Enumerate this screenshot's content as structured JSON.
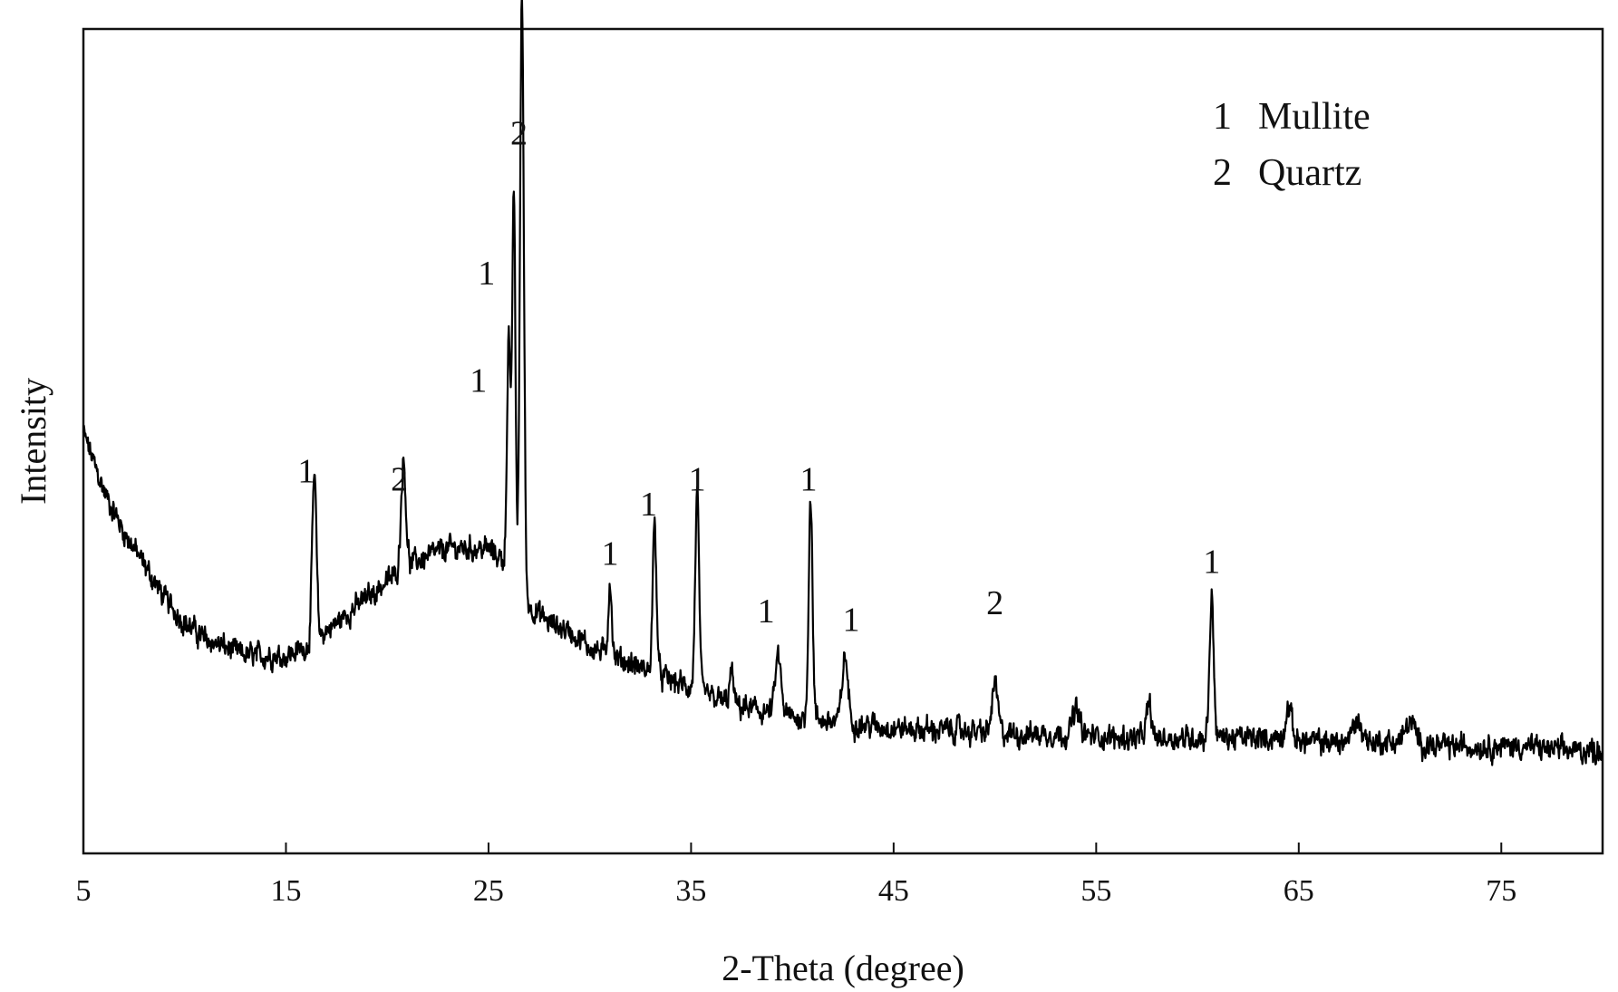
{
  "chart_data": {
    "type": "line",
    "title": "",
    "xlabel": "2-Theta (degree)",
    "ylabel": "Intensity",
    "xlim": [
      5,
      80
    ],
    "ylim": [
      0,
      100
    ],
    "x_ticks": [
      "5",
      "15",
      "25",
      "35",
      "45",
      "55",
      "65",
      "75"
    ],
    "y_ticks_visible": false,
    "grid": false,
    "legend_position": "top-right",
    "legend": [
      {
        "marker": "1",
        "phase": "Mullite"
      },
      {
        "marker": "2",
        "phase": "Quartz"
      }
    ],
    "line_color": "#000000",
    "background": {
      "x": [
        5,
        6,
        7,
        8,
        9,
        10,
        11,
        12,
        13,
        14,
        15,
        16,
        17,
        18,
        19,
        20,
        21,
        22,
        23,
        24,
        25,
        26,
        27,
        28,
        29,
        30,
        31,
        32,
        33,
        34,
        35,
        36,
        37,
        38,
        39,
        40,
        42,
        44,
        46,
        48,
        50,
        52,
        54,
        56,
        58,
        60,
        62,
        64,
        66,
        68,
        70,
        72,
        74,
        76,
        78,
        80
      ],
      "y": [
        51,
        44,
        39,
        35,
        31,
        28,
        26,
        25,
        24,
        24,
        24,
        25,
        27,
        29,
        31,
        33,
        35,
        36,
        37,
        37,
        37,
        35,
        30,
        28,
        27,
        25,
        24,
        23,
        22,
        21,
        20,
        19,
        18,
        17.5,
        17,
        16.5,
        16,
        15.5,
        15,
        15,
        14.5,
        14.5,
        14.5,
        14,
        14,
        14,
        14,
        14,
        13.5,
        13.5,
        13.5,
        13,
        13,
        13,
        12.5,
        12.5
      ]
    },
    "peaks": [
      {
        "x": 16.4,
        "height": 20,
        "width": 0.22,
        "label": "1"
      },
      {
        "x": 20.8,
        "height": 13,
        "width": 0.25,
        "label": "2"
      },
      {
        "x": 26.0,
        "height": 28,
        "width": 0.18,
        "label": "1"
      },
      {
        "x": 26.25,
        "height": 47,
        "width": 0.16,
        "label": "1"
      },
      {
        "x": 26.65,
        "height": 72,
        "width": 0.2,
        "label": "2"
      },
      {
        "x": 31.0,
        "height": 9,
        "width": 0.18,
        "label": "1"
      },
      {
        "x": 33.2,
        "height": 18,
        "width": 0.2,
        "label": "1"
      },
      {
        "x": 35.3,
        "height": 24,
        "width": 0.2,
        "label": "1"
      },
      {
        "x": 37.0,
        "height": 4,
        "width": 0.2
      },
      {
        "x": 39.3,
        "height": 7,
        "width": 0.3,
        "label": "1"
      },
      {
        "x": 40.9,
        "height": 27,
        "width": 0.2,
        "label": "1"
      },
      {
        "x": 42.6,
        "height": 8,
        "width": 0.3,
        "label": "1"
      },
      {
        "x": 50.0,
        "height": 6,
        "width": 0.3,
        "label": "2"
      },
      {
        "x": 54.0,
        "height": 3,
        "width": 0.35
      },
      {
        "x": 57.6,
        "height": 4,
        "width": 0.25
      },
      {
        "x": 60.7,
        "height": 17,
        "width": 0.22,
        "label": "1"
      },
      {
        "x": 64.5,
        "height": 4,
        "width": 0.3
      },
      {
        "x": 67.9,
        "height": 2.5,
        "width": 0.5
      },
      {
        "x": 70.5,
        "height": 2.5,
        "width": 0.5
      }
    ],
    "noise_amplitude": 1.3,
    "peak_annotations": [
      {
        "x": 16.0,
        "y": 45,
        "label": "1"
      },
      {
        "x": 20.6,
        "y": 44,
        "label": "2"
      },
      {
        "x": 24.9,
        "y": 69,
        "label": "1"
      },
      {
        "x": 24.5,
        "y": 56,
        "label": "1"
      },
      {
        "x": 26.5,
        "y": 86,
        "label": "2"
      },
      {
        "x": 31.0,
        "y": 35,
        "label": "1"
      },
      {
        "x": 32.9,
        "y": 41,
        "label": "1"
      },
      {
        "x": 35.3,
        "y": 44,
        "label": "1"
      },
      {
        "x": 38.7,
        "y": 28,
        "label": "1"
      },
      {
        "x": 40.8,
        "y": 44,
        "label": "1"
      },
      {
        "x": 42.9,
        "y": 27,
        "label": "1"
      },
      {
        "x": 50.0,
        "y": 29,
        "label": "2"
      },
      {
        "x": 60.7,
        "y": 34,
        "label": "1"
      }
    ]
  }
}
